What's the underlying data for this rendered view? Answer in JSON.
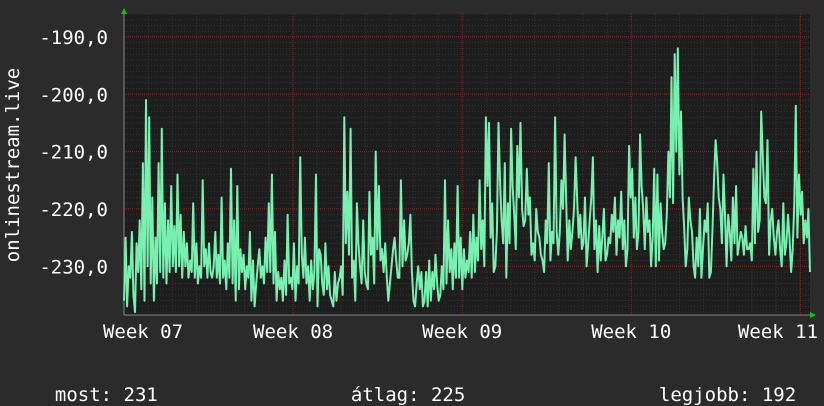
{
  "chart_data": {
    "type": "line",
    "ylabel": "onlinestream.live",
    "ylim": [
      -238.5,
      -186.0
    ],
    "y_inverted": true,
    "yticks": [
      -190,
      -200,
      -210,
      -220,
      -230
    ],
    "ytick_labels": [
      "-190,0",
      "-200,0",
      "-210,0",
      "-220,0",
      "-230,0"
    ],
    "xlim": [
      0,
      28.4
    ],
    "xticks": [
      0,
      7,
      14,
      21,
      28
    ],
    "xtick_labels": [
      "Week 07",
      "Week 08",
      "Week 09",
      "Week 10",
      "Week 11"
    ],
    "grid": true,
    "series": [
      {
        "color": "#77f0b0",
        "x_unit": "days since start of Week 07",
        "values": [
          -236,
          -225,
          -237,
          -230,
          -232,
          -224,
          -235,
          -238,
          -226,
          -231,
          -222,
          -234,
          -212,
          -236,
          -201,
          -230,
          -204,
          -233,
          -218,
          -236,
          -225,
          -233,
          -212,
          -231,
          -206,
          -232,
          -219,
          -233,
          -222,
          -231,
          -216,
          -230,
          -223,
          -231,
          -214,
          -230,
          -221,
          -232,
          -224,
          -230,
          -226,
          -232,
          -229,
          -231,
          -219,
          -232,
          -226,
          -233,
          -230,
          -232,
          -215,
          -230,
          -227,
          -232,
          -226,
          -231,
          -232,
          -230,
          -224,
          -232,
          -228,
          -233,
          -218,
          -232,
          -229,
          -234,
          -226,
          -232,
          -213,
          -233,
          -222,
          -236,
          -216,
          -234,
          -227,
          -231,
          -228,
          -234,
          -230,
          -232,
          -224,
          -236,
          -229,
          -237,
          -233,
          -230,
          -227,
          -232,
          -230,
          -233,
          -225,
          -231,
          -219,
          -231,
          -214,
          -233,
          -224,
          -236,
          -231,
          -234,
          -232,
          -236,
          -229,
          -235,
          -221,
          -233,
          -232,
          -234,
          -226,
          -236,
          -230,
          -233,
          -211,
          -228,
          -232,
          -225,
          -233,
          -230,
          -236,
          -229,
          -234,
          -231,
          -214,
          -237,
          -227,
          -228,
          -233,
          -235,
          -226,
          -234,
          -230,
          -235,
          -236,
          -237,
          -231,
          -236,
          -233,
          -232,
          -230,
          -235,
          -204,
          -226,
          -217,
          -228,
          -206,
          -232,
          -229,
          -236,
          -219,
          -226,
          -230,
          -233,
          -222,
          -231,
          -233,
          -234,
          -217,
          -228,
          -225,
          -233,
          -210,
          -227,
          -216,
          -229,
          -227,
          -231,
          -226,
          -232,
          -236,
          -233,
          -230,
          -227,
          -225,
          -229,
          -232,
          -232,
          -215,
          -230,
          -222,
          -229,
          -228,
          -226,
          -221,
          -231,
          -236,
          -237,
          -233,
          -230,
          -234,
          -231,
          -237,
          -236,
          -231,
          -237,
          -229,
          -236,
          -231,
          -234,
          -228,
          -233,
          -236,
          -235,
          -230,
          -234,
          -215,
          -233,
          -222,
          -231,
          -227,
          -234,
          -226,
          -232,
          -216,
          -232,
          -225,
          -234,
          -227,
          -232,
          -229,
          -231,
          -224,
          -232,
          -221,
          -231,
          -225,
          -229,
          -215,
          -227,
          -222,
          -230,
          -204,
          -216,
          -205,
          -225,
          -219,
          -231,
          -230,
          -224,
          -205,
          -215,
          -222,
          -226,
          -212,
          -232,
          -219,
          -226,
          -206,
          -216,
          -221,
          -227,
          -209,
          -218,
          -205,
          -220,
          -223,
          -222,
          -213,
          -221,
          -218,
          -228,
          -226,
          -229,
          -220,
          -224,
          -225,
          -228,
          -229,
          -231,
          -222,
          -226,
          -212,
          -229,
          -224,
          -226,
          -204,
          -224,
          -228,
          -224,
          -215,
          -220,
          -207,
          -218,
          -229,
          -222,
          -227,
          -224,
          -220,
          -211,
          -218,
          -225,
          -221,
          -227,
          -226,
          -218,
          -230,
          -226,
          -222,
          -218,
          -211,
          -227,
          -222,
          -231,
          -223,
          -229,
          -225,
          -220,
          -229,
          -228,
          -225,
          -226,
          -221,
          -224,
          -218,
          -228,
          -222,
          -225,
          -217,
          -227,
          -222,
          -230,
          -227,
          -209,
          -218,
          -213,
          -225,
          -218,
          -227,
          -224,
          -207,
          -216,
          -220,
          -227,
          -218,
          -224,
          -222,
          -230,
          -225,
          -213,
          -230,
          -214,
          -229,
          -219,
          -224,
          -227,
          -226,
          -221,
          -210,
          -218,
          -197,
          -219,
          -193,
          -210,
          -192,
          -214,
          -203,
          -218,
          -223,
          -230,
          -227,
          -218,
          -222,
          -224,
          -230,
          -232,
          -225,
          -230,
          -220,
          -232,
          -227,
          -222,
          -224,
          -219,
          -232,
          -231,
          -224,
          -215,
          -208,
          -212,
          -218,
          -220,
          -226,
          -214,
          -221,
          -230,
          -221,
          -224,
          -229,
          -218,
          -226,
          -216,
          -228,
          -226,
          -224,
          -225,
          -228,
          -223,
          -227,
          -227,
          -226,
          -229,
          -213,
          -226,
          -210,
          -224,
          -222,
          -203,
          -211,
          -218,
          -219,
          -208,
          -228,
          -222,
          -220,
          -225,
          -228,
          -224,
          -222,
          -227,
          -230,
          -219,
          -228,
          -226,
          -221,
          -225,
          -231,
          -227,
          -219,
          -202,
          -225,
          -214,
          -221,
          -217,
          -226,
          -222,
          -225,
          -220,
          -231
        ]
      }
    ],
    "footer": [
      {
        "label": "most:",
        "value": "231"
      },
      {
        "label": "átlag:",
        "value": "225"
      },
      {
        "label": "legjobb:",
        "value": "192"
      }
    ]
  }
}
